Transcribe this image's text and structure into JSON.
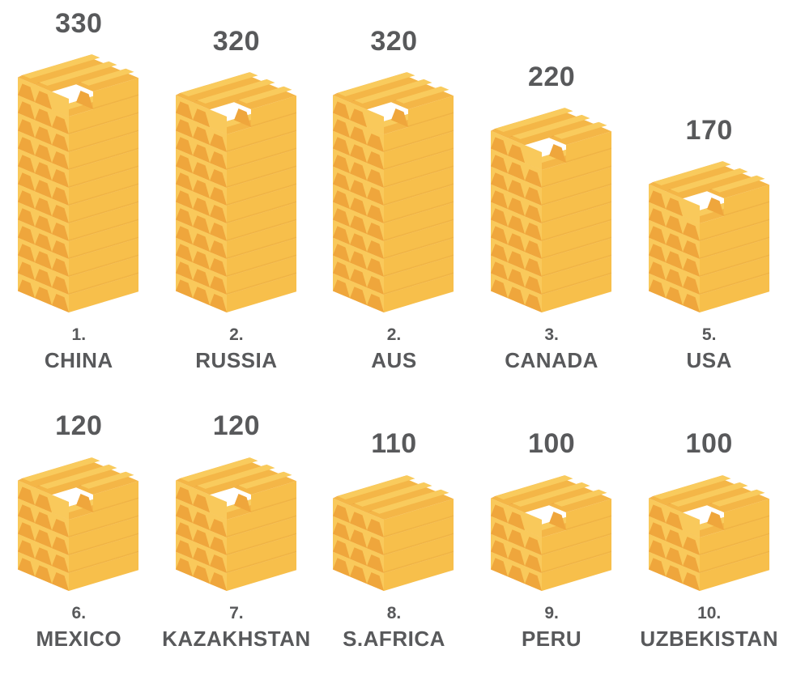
{
  "colors": {
    "gold_side_face": "#F7BF4B",
    "gold_end_dark": "#EFA63C",
    "gold_band_light": "#F9C95B",
    "gold_top_flat": "#F9CB5D",
    "gold_shoulder": "#F4B647",
    "gold_layer_line": "#EBAB3F",
    "text": "#58595B",
    "background": "#FFFFFF"
  },
  "chart_data": {
    "type": "bar",
    "pictogram_mark": "stacked-gold-ingots",
    "categories": [
      "CHINA",
      "RUSSIA",
      "AUS",
      "CANADA",
      "USA",
      "MEXICO",
      "KAZAKHSTAN",
      "S.AFRICA",
      "PERU",
      "UZBEKISTAN"
    ],
    "values": [
      330,
      320,
      320,
      220,
      170,
      120,
      120,
      110,
      100,
      100
    ],
    "ranks": [
      "1.",
      "2.",
      "2.",
      "3.",
      "5.",
      "6.",
      "7.",
      "8.",
      "9.",
      "10."
    ],
    "title": "",
    "xlabel": "",
    "ylabel": "",
    "grid": false,
    "legend_position": "none",
    "layout_hints": {
      "rows_of_columns": [
        5,
        5
      ],
      "bottom_aligned": true,
      "value_labels": "above stacks",
      "rank_and_name": "below stacks"
    }
  },
  "rows": [
    {
      "items": [
        {
          "value": "330",
          "rank": "1.",
          "name": "CHINA",
          "layers": 12,
          "notch": true
        },
        {
          "value": "320",
          "rank": "2.",
          "name": "RUSSIA",
          "layers": 11,
          "notch": true
        },
        {
          "value": "320",
          "rank": "2.",
          "name": "AUS",
          "layers": 11,
          "notch": true
        },
        {
          "value": "220",
          "rank": "3.",
          "name": "CANADA",
          "layers": 9,
          "notch": true
        },
        {
          "value": "170",
          "rank": "5.",
          "name": "USA",
          "layers": 6,
          "notch": true
        }
      ]
    },
    {
      "items": [
        {
          "value": "120",
          "rank": "6.",
          "name": "MEXICO",
          "layers": 5,
          "notch": true
        },
        {
          "value": "120",
          "rank": "7.",
          "name": "KAZAKHSTAN",
          "layers": 5,
          "notch": true
        },
        {
          "value": "110",
          "rank": "8.",
          "name": "S.AFRICA",
          "layers": 4,
          "notch": false
        },
        {
          "value": "100",
          "rank": "9.",
          "name": "PERU",
          "layers": 4,
          "notch": true
        },
        {
          "value": "100",
          "rank": "10.",
          "name": "UZBEKISTAN",
          "layers": 4,
          "notch": true
        }
      ]
    }
  ]
}
